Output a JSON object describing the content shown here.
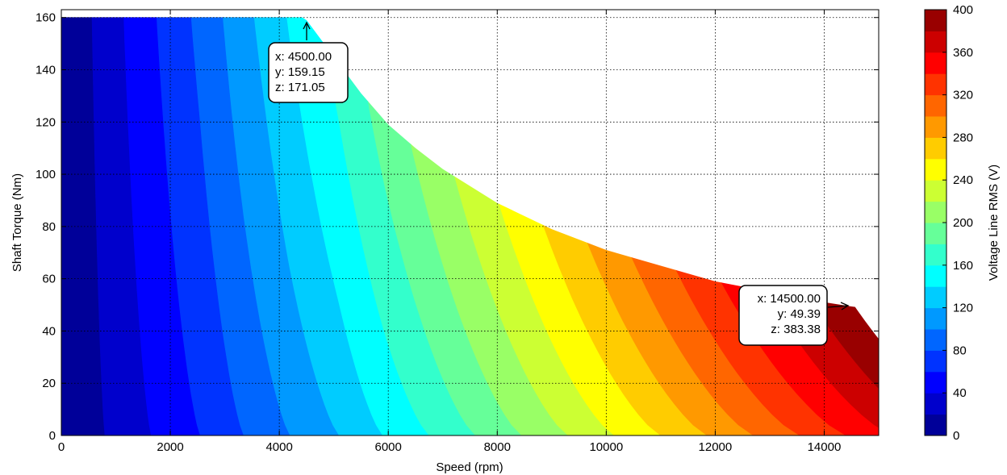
{
  "chart_data": {
    "type": "contour",
    "title": "",
    "xlabel": "Speed  (rpm)",
    "ylabel": "Shaft Torque  (Nm)",
    "colorbar_label": "Voltage Line RMS (V)",
    "xlim": [
      0,
      15000
    ],
    "ylim": [
      0,
      163
    ],
    "xticks": [
      0,
      2000,
      4000,
      6000,
      8000,
      10000,
      12000,
      14000
    ],
    "yticks": [
      0,
      20,
      40,
      60,
      80,
      100,
      120,
      140,
      160
    ],
    "zlim": [
      0,
      400
    ],
    "zticks": [
      0,
      40,
      80,
      120,
      160,
      200,
      240,
      280,
      320,
      360,
      400
    ],
    "level_step": 20,
    "grid": true,
    "colormap": "jet",
    "torque_limit_boundary": [
      {
        "x": 4200,
        "y": 163
      },
      {
        "x": 4500,
        "y": 159
      },
      {
        "x": 5000,
        "y": 145
      },
      {
        "x": 5500,
        "y": 131
      },
      {
        "x": 6000,
        "y": 119
      },
      {
        "x": 6500,
        "y": 110
      },
      {
        "x": 7000,
        "y": 102
      },
      {
        "x": 8000,
        "y": 89
      },
      {
        "x": 9000,
        "y": 79
      },
      {
        "x": 10000,
        "y": 71
      },
      {
        "x": 11000,
        "y": 65
      },
      {
        "x": 12000,
        "y": 59
      },
      {
        "x": 13000,
        "y": 55
      },
      {
        "x": 14000,
        "y": 51
      },
      {
        "x": 14500,
        "y": 49.4
      },
      {
        "x": 15000,
        "y": 48
      }
    ],
    "voltage_at_zero_torque": [
      {
        "x": 800,
        "y": 20
      },
      {
        "x": 1650,
        "y": 40
      },
      {
        "x": 2550,
        "y": 60
      },
      {
        "x": 3350,
        "y": 80
      },
      {
        "x": 4200,
        "y": 100
      },
      {
        "x": 5100,
        "y": 120
      },
      {
        "x": 5900,
        "y": 140
      },
      {
        "x": 6750,
        "y": 160
      },
      {
        "x": 7600,
        "y": 180
      },
      {
        "x": 8450,
        "y": 200
      },
      {
        "x": 9300,
        "y": 220
      },
      {
        "x": 10150,
        "y": 240
      },
      {
        "x": 11000,
        "y": 260
      },
      {
        "x": 11850,
        "y": 280
      },
      {
        "x": 12700,
        "y": 300
      },
      {
        "x": 13550,
        "y": 320
      },
      {
        "x": 14400,
        "y": 340
      }
    ],
    "datatips": [
      {
        "x": 4500,
        "y": 159.15,
        "z": 171.05,
        "x_text": "x: 4500.00",
        "y_text": "y: 159.15",
        "z_text": "z: 171.05"
      },
      {
        "x": 14500,
        "y": 49.39,
        "z": 383.38,
        "x_text": "x: 14500.00",
        "y_text": "y: 49.39",
        "z_text": "z: 383.38"
      }
    ]
  }
}
